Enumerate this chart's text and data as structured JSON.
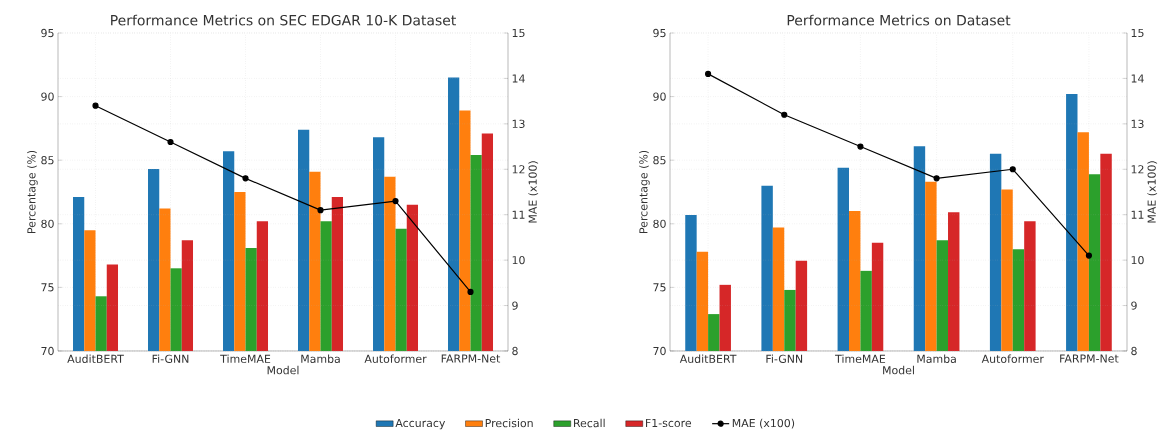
{
  "chart_data": [
    {
      "type": "bar",
      "title": "Performance Metrics on SEC EDGAR 10-K Dataset",
      "xlabel": "Model",
      "ylabel": "Percentage (%)",
      "y2label": "MAE (x100)",
      "categories": [
        "AuditBERT",
        "Fi-GNN",
        "TimeMAE",
        "Mamba",
        "Autoformer",
        "FARPM-Net"
      ],
      "series": [
        {
          "name": "Accuracy",
          "color": "#1f77b4",
          "values": [
            82.1,
            84.3,
            85.7,
            87.4,
            86.8,
            91.5
          ]
        },
        {
          "name": "Precision",
          "color": "#ff7f0e",
          "values": [
            79.5,
            81.2,
            82.5,
            84.1,
            83.7,
            88.9
          ]
        },
        {
          "name": "Recall",
          "color": "#2ca02c",
          "values": [
            74.3,
            76.5,
            78.1,
            80.2,
            79.6,
            85.4
          ]
        },
        {
          "name": "F1-score",
          "color": "#d62728",
          "values": [
            76.8,
            78.7,
            80.2,
            82.1,
            81.5,
            87.1
          ]
        },
        {
          "name": "MAE (x100)",
          "type": "line",
          "axis": "y2",
          "color": "#000000",
          "marker": "circle",
          "line_style": "solid",
          "values": [
            13.4,
            12.6,
            11.8,
            11.1,
            11.3,
            9.3
          ]
        }
      ],
      "ylim": [
        70,
        95
      ],
      "yticks": [
        70,
        75,
        80,
        85,
        90,
        95
      ],
      "y2lim": [
        8,
        15
      ],
      "y2ticks": [
        8,
        9,
        10,
        11,
        12,
        13,
        14,
        15
      ],
      "grid": true,
      "legend": "bottom"
    },
    {
      "type": "bar",
      "title": "Performance Metrics on Dataset",
      "xlabel": "Model",
      "ylabel": "Percentage (%)",
      "y2label": "MAE (x100)",
      "categories": [
        "AuditBERT",
        "Fi-GNN",
        "TimeMAE",
        "Mamba",
        "Autoformer",
        "FARPM-Net"
      ],
      "series": [
        {
          "color": "#1f77b4",
          "values": [
            80.7,
            83.0,
            84.4,
            86.1,
            85.5,
            90.2
          ]
        },
        {
          "color": "#ff7f0e",
          "values": [
            77.8,
            79.7,
            81.0,
            83.3,
            82.7,
            87.2
          ]
        },
        {
          "color": "#2ca02c",
          "values": [
            72.9,
            74.8,
            76.3,
            78.7,
            78.0,
            83.9
          ]
        },
        {
          "color": "#d62728",
          "values": [
            75.2,
            77.1,
            78.5,
            80.9,
            80.2,
            85.5
          ]
        },
        {
          "type": "line",
          "axis": "y2",
          "color": "#000000",
          "marker": "circle",
          "line_style": "solid",
          "values": [
            14.1,
            13.2,
            12.5,
            11.8,
            12.0,
            10.1
          ]
        }
      ],
      "ylim": [
        70,
        95
      ],
      "yticks": [
        70,
        75,
        80,
        85,
        90,
        95
      ],
      "y2lim": [
        8,
        15
      ],
      "y2ticks": [
        8,
        9,
        10,
        11,
        12,
        13,
        14,
        15
      ],
      "grid": true
    }
  ]
}
